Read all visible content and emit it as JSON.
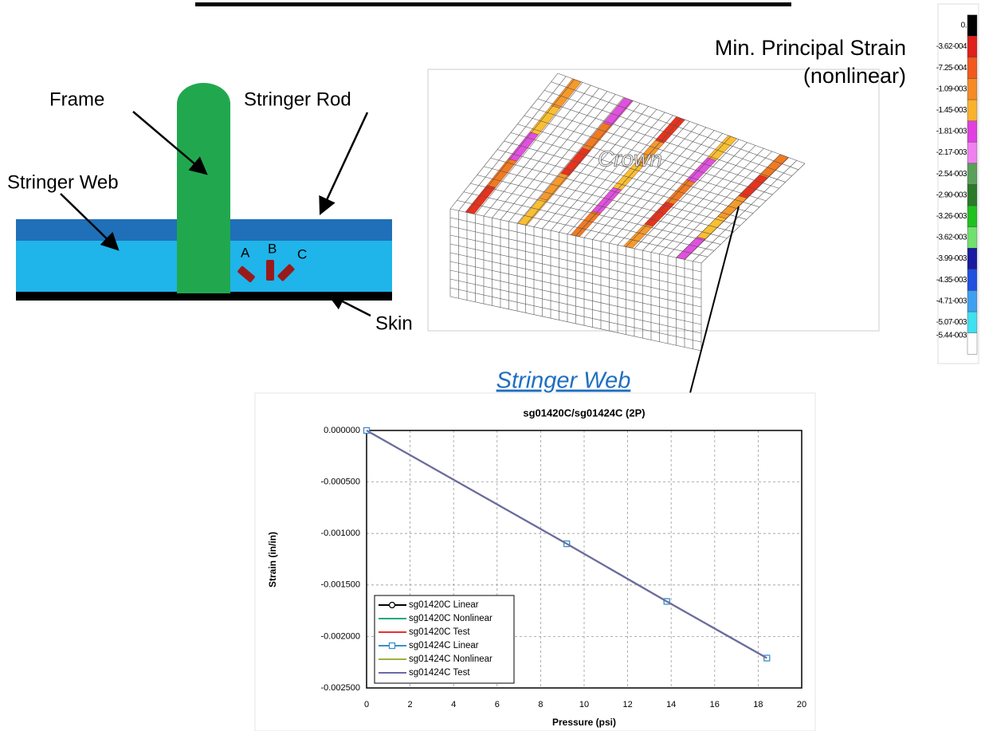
{
  "diagram": {
    "labels": {
      "frame": "Frame",
      "stringer_rod": "Stringer Rod",
      "stringer_web": "Stringer Web",
      "skin": "Skin",
      "gauge_a": "A",
      "gauge_b": "B",
      "gauge_c": "C"
    }
  },
  "contour": {
    "title": [
      "Min. Principal Strain",
      "(nonlinear)"
    ],
    "region_label": "Crown",
    "scale_labels": [
      "0.",
      "-3.62-004",
      "-7.25-004",
      "-1.09-003",
      "-1.45-003",
      "-1.81-003",
      "-2.17-003",
      "-2.54-003",
      "-2.90-003",
      "-3.26-003",
      "-3.62-003",
      "-3.99-003",
      "-4.35-003",
      "-4.71-003",
      "-5.07-003",
      "-5.44-003"
    ],
    "scale_colors": [
      "#000000",
      "#e0201a",
      "#f05a1e",
      "#f58a28",
      "#f8b22e",
      "#e040e0",
      "#f080f0",
      "#5aa05a",
      "#2a7a2a",
      "#20c020",
      "#70e070",
      "#1a1aa0",
      "#2050e0",
      "#40a0f0",
      "#40e0f0",
      "#ffffff"
    ]
  },
  "section_title": "Stringer Web",
  "chart_data": {
    "type": "line",
    "title": "sg01420C/sg01424C (2P)",
    "x_label": "Pressure (psi)",
    "y_label": "Strain (in/in)",
    "x": [
      0,
      9.2,
      13.8,
      18.4
    ],
    "series": [
      {
        "name": "sg01420C Linear",
        "color": "#000000",
        "marker": "circle",
        "values": [
          0,
          -0.0011,
          -0.00166,
          -0.00221
        ]
      },
      {
        "name": "sg01420C Nonlinear",
        "color": "#1aa878",
        "values": [
          0,
          -0.0011,
          -0.00166,
          -0.00221
        ]
      },
      {
        "name": "sg01420C Test",
        "color": "#e83030",
        "values": [
          0,
          -0.0011,
          -0.00166,
          -0.00221
        ]
      },
      {
        "name": "sg01424C Linear",
        "color": "#3a8fc8",
        "marker": "square",
        "values": [
          0,
          -0.0011,
          -0.00166,
          -0.00221
        ]
      },
      {
        "name": "sg01424C Nonlinear",
        "color": "#a0b040",
        "values": [
          0,
          -0.0011,
          -0.00166,
          -0.00221
        ]
      },
      {
        "name": "sg01424C Test",
        "color": "#6a6aa8",
        "values": [
          0,
          -0.0011,
          -0.00166,
          -0.00221
        ]
      }
    ],
    "xlim": [
      0,
      20
    ],
    "xticks": [
      0,
      2,
      4,
      6,
      8,
      10,
      12,
      14,
      16,
      18,
      20
    ],
    "ylim": [
      -0.0025,
      0
    ],
    "yticks": [
      {
        "value": -0.0025,
        "label": "-0.002500"
      },
      {
        "value": -0.002,
        "label": "-0.002000"
      },
      {
        "value": -0.0015,
        "label": "-0.001500"
      },
      {
        "value": -0.001,
        "label": "-0.001000"
      },
      {
        "value": -0.0005,
        "label": "-0.000500"
      },
      {
        "value": 0,
        "label": "0.000000"
      }
    ],
    "grid": true,
    "legend": "lower left"
  }
}
